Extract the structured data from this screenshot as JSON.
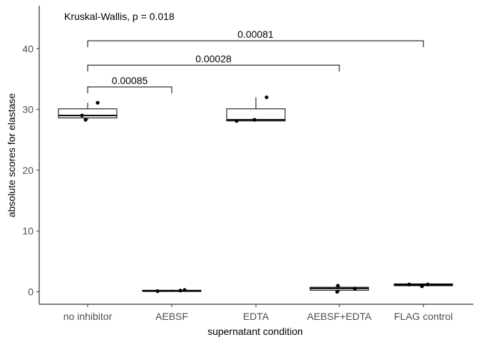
{
  "chart_data": {
    "type": "boxplot",
    "title": "",
    "xlabel": "supernatant condition",
    "ylabel": "absolute scores for elastase",
    "ylim": [
      -2,
      47
    ],
    "yticks": [
      0,
      10,
      20,
      30,
      40
    ],
    "categories": [
      "no inhibitor",
      "AEBSF",
      "EDTA",
      "AEBSF+EDTA",
      "FLAG control"
    ],
    "boxes": [
      {
        "q1": 28.6,
        "median": 29.0,
        "q3": 30.1,
        "whisker_low": 28.3,
        "whisker_high": 31.1
      },
      {
        "q1": 0.05,
        "median": 0.15,
        "q3": 0.25,
        "whisker_low": 0.0,
        "whisker_high": 0.35
      },
      {
        "q1": 28.1,
        "median": 28.3,
        "q3": 30.1,
        "whisker_low": 28.1,
        "whisker_high": 32.0
      },
      {
        "q1": 0.25,
        "median": 0.55,
        "q3": 0.75,
        "whisker_low": 0.0,
        "whisker_high": 1.1
      },
      {
        "q1": 1.0,
        "median": 1.15,
        "q3": 1.3,
        "whisker_low": 0.8,
        "whisker_high": 1.3
      }
    ],
    "points": [
      [
        29.0,
        28.3,
        31.1
      ],
      [
        0.1,
        0.2,
        0.3
      ],
      [
        28.1,
        32.0,
        28.3
      ],
      [
        0.0,
        1.0,
        0.5
      ],
      [
        1.2,
        0.9,
        1.2
      ]
    ],
    "comparisons": [
      {
        "from": "no inhibitor",
        "to": "AEBSF",
        "label": "0.00085",
        "y": 33.7
      },
      {
        "from": "no inhibitor",
        "to": "AEBSF+EDTA",
        "label": "0.00028",
        "y": 37.3
      },
      {
        "from": "no inhibitor",
        "to": "FLAG control",
        "label": "0.00081",
        "y": 41.3
      }
    ],
    "test_annotation": "Kruskal-Wallis, p = 0.018",
    "grid": false,
    "legend": "none"
  }
}
